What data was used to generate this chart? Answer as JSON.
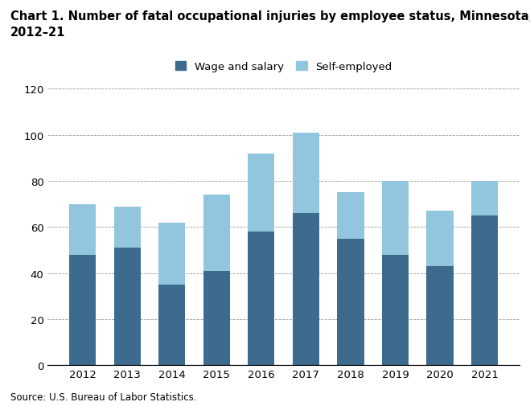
{
  "years": [
    "2012",
    "2013",
    "2014",
    "2015",
    "2016",
    "2017",
    "2018",
    "2019",
    "2020",
    "2021"
  ],
  "wage_and_salary": [
    48,
    51,
    35,
    41,
    58,
    66,
    55,
    48,
    43,
    65
  ],
  "self_employed": [
    22,
    18,
    27,
    33,
    34,
    35,
    20,
    32,
    24,
    15
  ],
  "wage_color": "#3D6B8E",
  "self_color": "#92C5DE",
  "title_line1": "Chart 1. Number of fatal occupational injuries by employee status, Minnesota,",
  "title_line2": "2012–21",
  "ylim": [
    0,
    120
  ],
  "yticks": [
    0,
    20,
    40,
    60,
    80,
    100,
    120
  ],
  "legend_wage": "Wage and salary",
  "legend_self": "Self-employed",
  "source_text": "Source: U.S. Bureau of Labor Statistics.",
  "title_fontsize": 10.5,
  "tick_fontsize": 9.5,
  "legend_fontsize": 9.5,
  "source_fontsize": 8.5,
  "bar_width": 0.6
}
